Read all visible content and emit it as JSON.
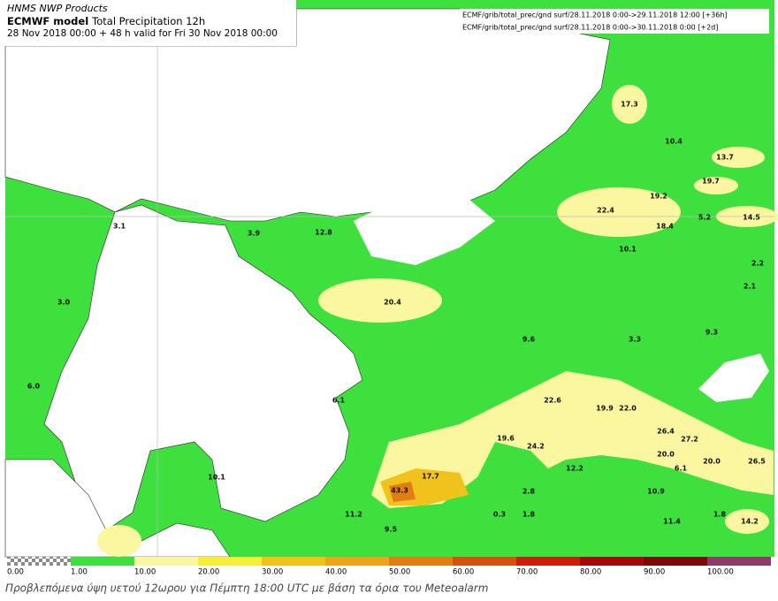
{
  "header": {
    "product": "HNMS NWP Products",
    "model": "ECMWF model",
    "field": "Total Precipitation 12h",
    "valid": "28 Nov 2018 00:00 + 48 h valid for Fri 30 Nov 2018 00:00"
  },
  "info": [
    "ECMF/grib/total_prec/gnd surf/28.11.2018 0:00->29.11.2018 12:00 [+36h]",
    "ECMF/grib/total_prec/gnd surf/28.11.2018 0:00->30.11.2018 0:00 [+2d]"
  ],
  "map_labels": [
    "17.3",
    "10.4",
    "13.7",
    "19.7",
    "19.2",
    "22.4",
    "5.2",
    "14.5",
    "18.4",
    "10.1",
    "2.2",
    "2.1",
    "3.1",
    "3.9",
    "12.8",
    "20.4",
    "3.0",
    "9.3",
    "3.3",
    "9.6",
    "6.0",
    "22.6",
    "19.9",
    "22.0",
    "26.4",
    "27.2",
    "19.6",
    "24.2",
    "20.0",
    "20.0",
    "26.5",
    "12.2",
    "6.1",
    "10.1",
    "17.7",
    "43.3",
    "10.9",
    "2.8",
    "11.2",
    "0.3",
    "1.8",
    "1.8",
    "11.4",
    "14.2",
    "9.5",
    "6.1"
  ],
  "legend": {
    "labels": [
      "0.00",
      "1.00",
      "10.00",
      "20.00",
      "30.00",
      "40.00",
      "50.00",
      "60.00",
      "70.00",
      "80.00",
      "90.00",
      "100.00"
    ],
    "colors": [
      "#8a8a8a",
      "#3ee03e",
      "#fbf7a0",
      "#f5ee3a",
      "#f2c21c",
      "#eda41a",
      "#e27d13",
      "#d8500e",
      "#cc1d0d",
      "#a5080a",
      "#7d0a0a",
      "#8e3a6a"
    ]
  },
  "caption": "Προβλεπόμενα ύψη υετού 12ωρου για Πέμπτη 18:00 UTC με βάση τα όρια του Meteoalarm"
}
